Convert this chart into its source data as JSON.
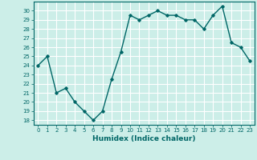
{
  "x": [
    0,
    1,
    2,
    3,
    4,
    5,
    6,
    7,
    8,
    9,
    10,
    11,
    12,
    13,
    14,
    15,
    16,
    17,
    18,
    19,
    20,
    21,
    22,
    23
  ],
  "y": [
    24,
    25,
    21,
    21.5,
    20,
    19,
    18,
    19,
    22.5,
    25.5,
    29.5,
    29,
    29.5,
    30,
    29.5,
    29.5,
    29,
    29,
    28,
    29.5,
    30.5,
    26.5,
    26,
    24.5
  ],
  "title": "",
  "xlabel": "Humidex (Indice chaleur)",
  "ylabel": "",
  "xlim": [
    -0.5,
    23.5
  ],
  "ylim": [
    17.5,
    31
  ],
  "yticks": [
    18,
    19,
    20,
    21,
    22,
    23,
    24,
    25,
    26,
    27,
    28,
    29,
    30
  ],
  "xticks": [
    0,
    1,
    2,
    3,
    4,
    5,
    6,
    7,
    8,
    9,
    10,
    11,
    12,
    13,
    14,
    15,
    16,
    17,
    18,
    19,
    20,
    21,
    22,
    23
  ],
  "line_color": "#006666",
  "marker": "D",
  "marker_size": 1.8,
  "bg_color": "#cceee8",
  "grid_color": "#ffffff",
  "label_color": "#006666",
  "tick_label_color": "#006666",
  "line_width": 1.0,
  "tick_fontsize": 5.0,
  "xlabel_fontsize": 6.5
}
